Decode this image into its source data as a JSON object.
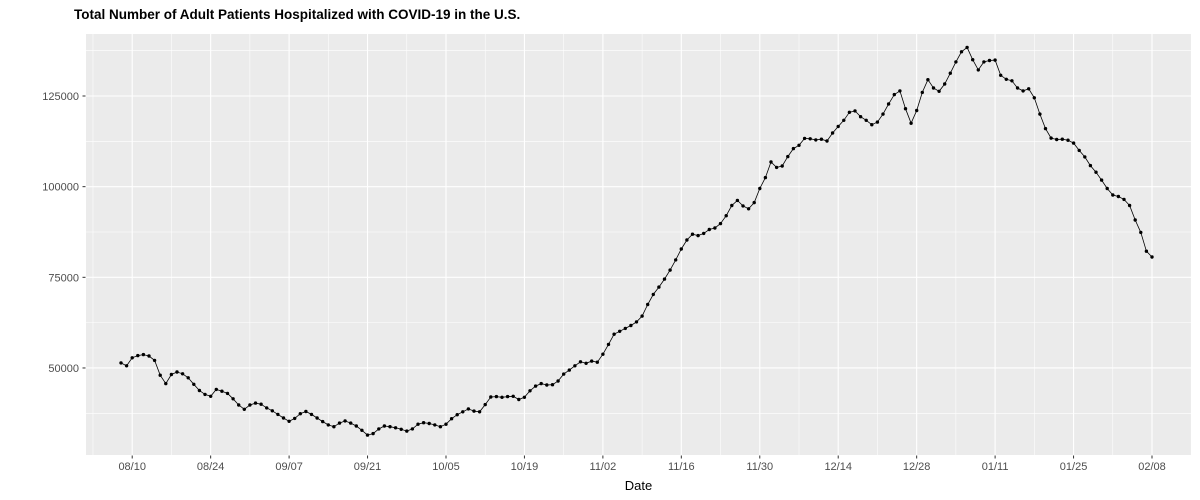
{
  "title": "Total Number of Adult Patients Hospitalized with COVID-19 in the U.S.",
  "colors": {
    "panel_bg": "#EBEBEB",
    "gridline": "#FFFFFF",
    "point": "#000000",
    "line": "#000000",
    "axis_text": "#4D4D4D",
    "tick_mark": "#333333",
    "title_color": "#000000"
  },
  "chart_data": {
    "type": "line",
    "title": "Total Number of Adult Patients Hospitalized with COVID-19 in the U.S.",
    "xlabel": "Date",
    "ylabel": "",
    "grid": "on",
    "legend": "none",
    "marker": "filled-circle",
    "date_start": "08/08",
    "date_end": "02/08",
    "frequency": "daily",
    "x_tick_labels": [
      "08/10",
      "08/24",
      "09/07",
      "09/21",
      "10/05",
      "10/19",
      "11/02",
      "11/16",
      "11/30",
      "12/14",
      "12/28",
      "01/11",
      "01/25",
      "02/08"
    ],
    "x_major_tick_indices": [
      2,
      16,
      30,
      44,
      58,
      72,
      86,
      100,
      114,
      128,
      142,
      156,
      170,
      184
    ],
    "y_tick_labels": [
      "50000",
      "75000",
      "100000",
      "125000"
    ],
    "y_tick_values": [
      50000,
      75000,
      100000,
      125000
    ],
    "y_minor_values": [
      37500,
      62500,
      87500,
      112500,
      137500
    ],
    "ylim": [
      26000,
      142100
    ],
    "values": [
      51400,
      50600,
      52800,
      53400,
      53700,
      53300,
      52100,
      48000,
      45700,
      48200,
      48900,
      48400,
      47300,
      45500,
      43800,
      42700,
      42200,
      44100,
      43600,
      43000,
      41500,
      39800,
      38600,
      39800,
      40300,
      40000,
      39000,
      38200,
      37200,
      36200,
      35300,
      36100,
      37400,
      38000,
      37200,
      36200,
      35200,
      34300,
      33800,
      34800,
      35400,
      34800,
      34000,
      32800,
      31500,
      31900,
      33200,
      34000,
      33800,
      33500,
      33100,
      32600,
      33200,
      34500,
      34900,
      34700,
      34300,
      33800,
      34500,
      36000,
      37100,
      37900,
      38700,
      38100,
      37900,
      39900,
      42000,
      42100,
      41900,
      42100,
      42200,
      41300,
      41900,
      43700,
      45000,
      45700,
      45300,
      45400,
      46400,
      48300,
      49400,
      50600,
      51700,
      51300,
      51900,
      51600,
      53800,
      56500,
      59300,
      60100,
      60900,
      61700,
      62700,
      64300,
      67500,
      70300,
      72300,
      74500,
      77000,
      79800,
      82800,
      85300,
      86900,
      86500,
      87100,
      88200,
      88600,
      89800,
      92000,
      94800,
      96200,
      94700,
      93900,
      95600,
      99500,
      102500,
      106800,
      105300,
      105700,
      108300,
      110500,
      111400,
      113300,
      113200,
      112900,
      113100,
      112600,
      114800,
      116600,
      118300,
      120500,
      120900,
      119300,
      118300,
      117100,
      117800,
      120000,
      122800,
      125400,
      126400,
      121500,
      117500,
      121000,
      126000,
      129500,
      127200,
      126300,
      128300,
      131300,
      134400,
      137200,
      138400,
      135000,
      132200,
      134400,
      134800,
      134900,
      130700,
      129600,
      129200,
      127200,
      126400,
      127000,
      124500,
      120000,
      116000,
      113400,
      113000,
      113100,
      112800,
      112000,
      110000,
      108200,
      105800,
      104000,
      101800,
      99500,
      97700,
      97300,
      96500,
      94800,
      90800,
      87400,
      82200,
      80600
    ]
  }
}
